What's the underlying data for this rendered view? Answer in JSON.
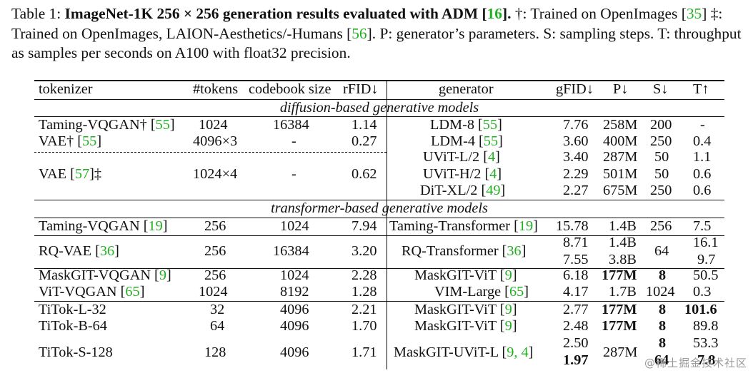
{
  "caption": {
    "prefix": "Table 1:",
    "title_a": "ImageNet-1K 256 × 256 generation results evaluated with ADM [",
    "title_ref": "16",
    "title_b": "].",
    "text_a": " †: Trained on OpenImages [",
    "ref_a": "35",
    "text_b": "] ‡: Trained on OpenImages, LAION-Aesthetics/-Humans [",
    "ref_b": "56",
    "text_c": "]. P: generator’s parameters. S: sampling steps. T: throughput as samples per seconds on A100 with float32 precision."
  },
  "headers": [
    "tokenizer",
    "#tokens",
    "codebook size",
    "rFID↓",
    "generator",
    "gFID↓",
    "P↓",
    "S↓",
    "T↑"
  ],
  "sections": {
    "diffusion": "diffusion-based generative models",
    "transformer": "transformer-based generative models"
  },
  "rows": [
    {
      "tok": "Taming-VQGAN† [",
      "tok_ref": "55",
      "tok_end": "]",
      "ntok": "1024",
      "cb": "16384",
      "rfid": "1.14",
      "gen": "LDM-8 [",
      "gen_ref": "55",
      "gen_end": "]",
      "gfid": "7.76",
      "p": "258M",
      "s": "200",
      "t": "-"
    },
    {
      "tok": "VAE† [",
      "tok_ref": "55",
      "tok_end": "]",
      "ntok": "4096×3",
      "cb": "-",
      "rfid": "0.27",
      "gen": "LDM-4 [",
      "gen_ref": "55",
      "gen_end": "]",
      "gfid": "3.60",
      "p": "400M",
      "s": "250",
      "t": "0.4"
    },
    {
      "gen": "UViT-L/2 [",
      "gen_ref": "4",
      "gen_end": "]",
      "gfid": "3.40",
      "p": "287M",
      "s": "50",
      "t": "1.1"
    },
    {
      "tok": "VAE [",
      "tok_ref": "57",
      "tok_end": "]‡",
      "ntok": "1024×4",
      "cb": "-",
      "rfid": "0.62",
      "gen": "UViT-H/2 [",
      "gen_ref": "4",
      "gen_end": "]",
      "gfid": "2.29",
      "p": "501M",
      "s": "50",
      "t": "0.6"
    },
    {
      "gen": "DiT-XL/2 [",
      "gen_ref": "49",
      "gen_end": "]",
      "gfid": "2.27",
      "p": "675M",
      "s": "250",
      "t": "0.6"
    },
    {
      "tok": "Taming-VQGAN [",
      "tok_ref": "19",
      "tok_end": "]",
      "ntok": "256",
      "cb": "1024",
      "rfid": "7.94",
      "gen": "Taming-Transformer [",
      "gen_ref": "19",
      "gen_end": "]",
      "gfid": "15.78",
      "p": "1.4B",
      "s": "256",
      "t": "7.5"
    },
    {
      "gfid": "8.71",
      "p": "1.4B",
      "t": "16.1"
    },
    {
      "tok": "RQ-VAE [",
      "tok_ref": "36",
      "tok_end": "]",
      "ntok": "256",
      "cb": "16384",
      "rfid": "3.20",
      "gen": "RQ-Transformer [",
      "gen_ref": "36",
      "gen_end": "]",
      "s": "64"
    },
    {
      "gfid": "7.55",
      "p": "3.8B",
      "t": "9.7"
    },
    {
      "tok": "MaskGIT-VQGAN [",
      "tok_ref": "9",
      "tok_end": "]",
      "ntok": "256",
      "cb": "1024",
      "rfid": "2.28",
      "gen": "MaskGIT-ViT [",
      "gen_ref": "9",
      "gen_end": "]",
      "gfid": "6.18",
      "p": "177M",
      "s": "8",
      "t": "50.5"
    },
    {
      "tok": "ViT-VQGAN [",
      "tok_ref": "65",
      "tok_end": "]",
      "ntok": "1024",
      "cb": "8192",
      "rfid": "1.28",
      "gen": "VIM-Large [",
      "gen_ref": "65",
      "gen_end": "]",
      "gfid": "4.17",
      "p": "1.7B",
      "s": "1024",
      "t": "0.3"
    },
    {
      "tok": "TiTok-L-32",
      "ntok": "32",
      "cb": "4096",
      "rfid": "2.21",
      "gen": "MaskGIT-ViT [",
      "gen_ref": "9",
      "gen_end": "]",
      "gfid": "2.77",
      "p": "177M",
      "s": "8",
      "t": "101.6"
    },
    {
      "tok": "TiTok-B-64",
      "ntok": "64",
      "cb": "4096",
      "rfid": "1.70",
      "gen": "MaskGIT-ViT [",
      "gen_ref": "9",
      "gen_end": "]",
      "gfid": "2.48",
      "p": "177M",
      "s": "8",
      "t": "89.8"
    },
    {
      "gfid": "2.50",
      "s": "8",
      "t": "53.3"
    },
    {
      "tok": "TiTok-S-128",
      "ntok": "128",
      "cb": "4096",
      "rfid": "1.71",
      "gen": "MaskGIT-UViT-L [",
      "gen_ref": "9, 4",
      "gen_end": "]",
      "p": "287M"
    },
    {
      "gfid": "1.97",
      "s": "64",
      "t": "7.8"
    }
  ],
  "watermark": "@稀土掘金技术社区"
}
